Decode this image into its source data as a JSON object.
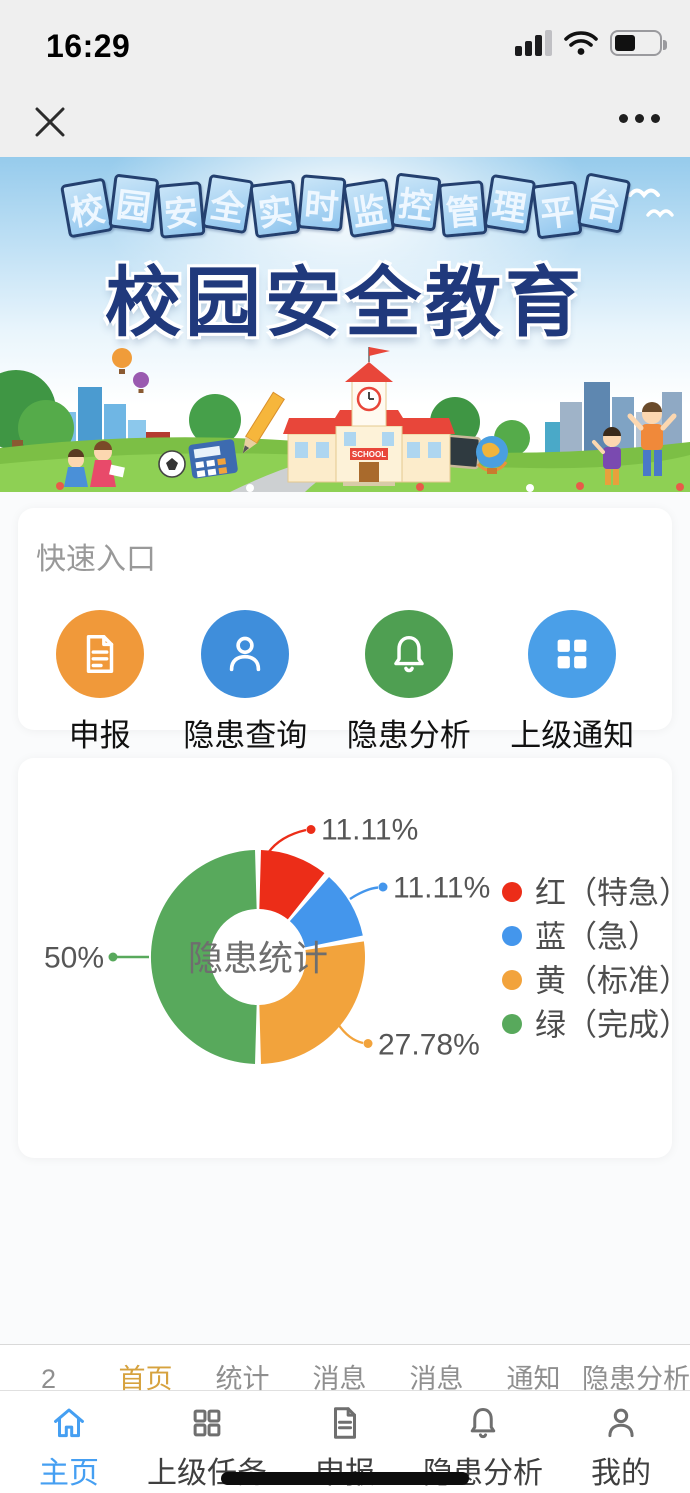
{
  "status_bar": {
    "time": "16:29"
  },
  "nav_bar": {
    "close_icon": "close",
    "more_icon": "more"
  },
  "banner": {
    "tagline": "校园安全实时监控管理平台",
    "title": "校园安全教育",
    "school_sign": "SCHOOL"
  },
  "quick_entry": {
    "title": "快速入口",
    "items": [
      {
        "label": "申报",
        "icon": "document-icon",
        "color": "#f0993a"
      },
      {
        "label": "隐患查询",
        "icon": "user-icon",
        "color": "#3f8edb"
      },
      {
        "label": "隐患分析",
        "icon": "bell-icon",
        "color": "#4f9f52"
      },
      {
        "label": "上级通知",
        "icon": "grid-icon",
        "color": "#4a9fe8"
      }
    ]
  },
  "chart_data": {
    "type": "pie",
    "subtype": "donut",
    "title": "隐患统计",
    "center_label": "隐患统计",
    "legend_position": "right",
    "direction": "clockwise",
    "start_angle_deg": 0,
    "inner_radius_ratio": 0.45,
    "series": [
      {
        "name": "红（特急）",
        "value": 11.11,
        "label": "11.11%",
        "color": "#ec2d18"
      },
      {
        "name": "蓝（急）",
        "value": 11.11,
        "label": "11.11%",
        "color": "#4496ec"
      },
      {
        "name": "黄（标准）",
        "value": 27.78,
        "label": "27.78%",
        "color": "#f2a33c"
      },
      {
        "name": "绿（完成）",
        "value": 50,
        "label": "50%",
        "color": "#58a95c"
      }
    ]
  },
  "hidden_row": {
    "items": [
      {
        "label": "2",
        "active": false
      },
      {
        "label": "首页",
        "active": true
      },
      {
        "label": "统计",
        "active": false
      },
      {
        "label": "消息",
        "active": false
      },
      {
        "label": "消息",
        "active": false
      },
      {
        "label": "通知",
        "active": false
      },
      {
        "label": "隐患分析",
        "active": false
      }
    ],
    "active_color": "#d6a23e"
  },
  "tab_bar": {
    "active_color": "#459ff2",
    "items": [
      {
        "label": "主页",
        "icon": "home-icon",
        "active": true
      },
      {
        "label": "上级任务",
        "icon": "grid-icon",
        "active": false
      },
      {
        "label": "申报",
        "icon": "document-icon",
        "active": false
      },
      {
        "label": "隐患分析",
        "icon": "bell-icon",
        "active": false
      },
      {
        "label": "我的",
        "icon": "user-icon",
        "active": false
      }
    ]
  }
}
